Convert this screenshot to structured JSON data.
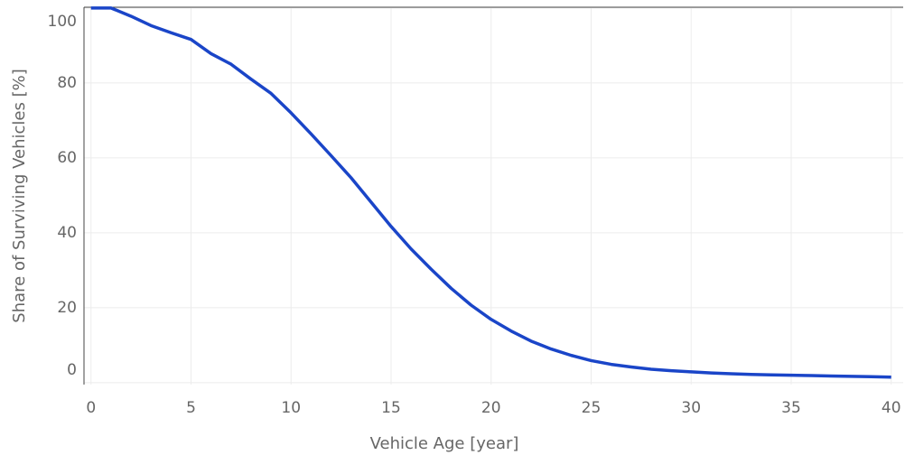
{
  "chart_data": {
    "type": "line",
    "xlabel": "Vehicle Age [year]",
    "ylabel": "Share of Surviving Vehicles [%]",
    "x": [
      0,
      1,
      2,
      3,
      4,
      5,
      6,
      7,
      8,
      9,
      10,
      11,
      12,
      13,
      14,
      15,
      16,
      17,
      18,
      19,
      20,
      21,
      22,
      23,
      24,
      25,
      26,
      27,
      28,
      29,
      30,
      31,
      32,
      33,
      34,
      35,
      36,
      37,
      38,
      39,
      40
    ],
    "series": [
      {
        "name": "Share of Surviving Vehicles",
        "color": "#1a45c8",
        "values": [
          100,
          100,
          97.8,
          95.3,
          93.4,
          91.6,
          87.8,
          85,
          81,
          77.2,
          72,
          66.4,
          60.6,
          54.7,
          48.2,
          41.7,
          35.7,
          30.3,
          25.2,
          20.7,
          16.9,
          13.8,
          11.1,
          9,
          7.3,
          5.9,
          4.9,
          4.2,
          3.6,
          3.2,
          2.9,
          2.6,
          2.4,
          2.2,
          2.1,
          2,
          1.9,
          1.8,
          1.7,
          1.6,
          1.5
        ]
      }
    ],
    "xlim": [
      -0.35,
      40.6
    ],
    "ylim": [
      -0.5,
      100.2
    ],
    "xticks": [
      0,
      5,
      10,
      15,
      20,
      25,
      30,
      35,
      40
    ],
    "yticks": [
      0,
      20,
      40,
      60,
      80,
      100
    ],
    "grid": true
  }
}
